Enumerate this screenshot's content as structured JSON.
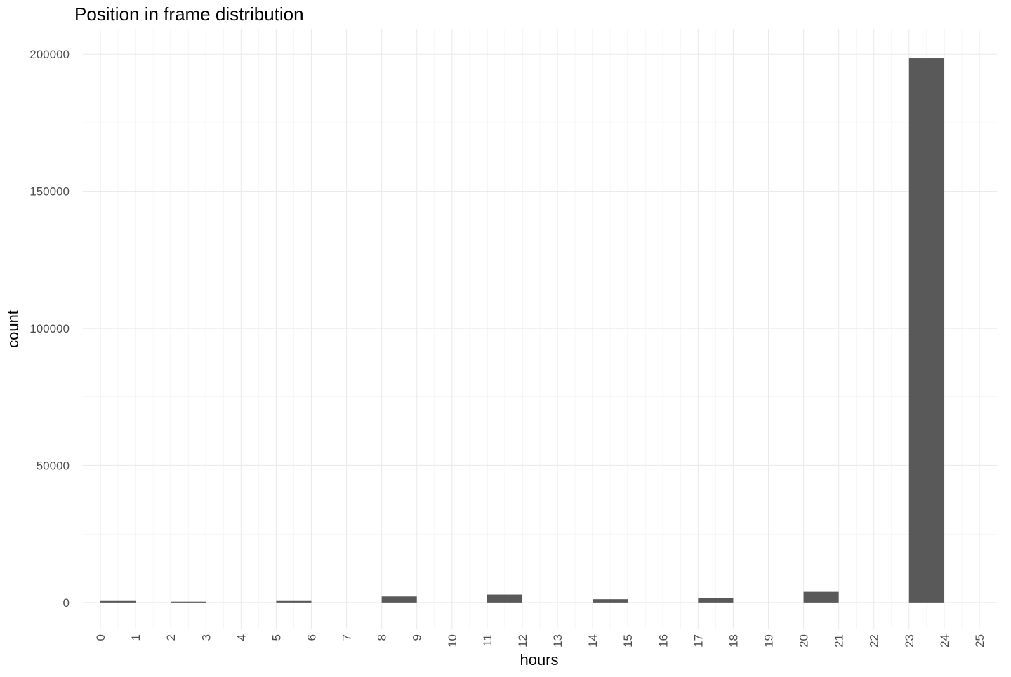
{
  "chart_data": {
    "type": "bar",
    "title": "Position in frame distribution",
    "xlabel": "hours",
    "ylabel": "count",
    "x_ticks": [
      "0",
      "1",
      "2",
      "3",
      "4",
      "5",
      "6",
      "7",
      "8",
      "9",
      "10",
      "11",
      "12",
      "13",
      "14",
      "15",
      "16",
      "17",
      "18",
      "19",
      "20",
      "21",
      "22",
      "23",
      "24",
      "25"
    ],
    "y_ticks": [
      "0",
      "50000",
      "100000",
      "150000",
      "200000"
    ],
    "xlim": [
      -0.5,
      25.5
    ],
    "ylim": [
      -9500,
      209000
    ],
    "bins": [
      {
        "x0": 0,
        "x1": 1,
        "count": 800
      },
      {
        "x0": 2,
        "x1": 3,
        "count": 300
      },
      {
        "x0": 5,
        "x1": 6,
        "count": 800
      },
      {
        "x0": 8,
        "x1": 9,
        "count": 2200
      },
      {
        "x0": 11,
        "x1": 12,
        "count": 2900
      },
      {
        "x0": 14,
        "x1": 15,
        "count": 1200
      },
      {
        "x0": 17,
        "x1": 18,
        "count": 1600
      },
      {
        "x0": 20,
        "x1": 21,
        "count": 3900
      },
      {
        "x0": 23,
        "x1": 24,
        "count": 198500
      }
    ],
    "bar_color": "#595959",
    "grid": true
  }
}
